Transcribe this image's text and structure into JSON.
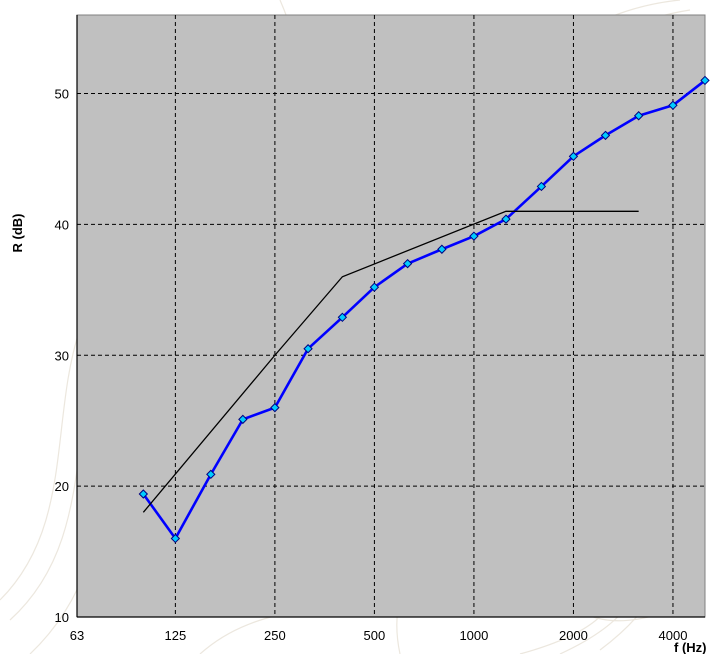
{
  "chart_data": {
    "type": "line",
    "title": "",
    "xlabel": "f (Hz)",
    "ylabel": "R (dB)",
    "x_scale": "log2",
    "xlim": [
      63,
      5000
    ],
    "ylim": [
      10,
      56
    ],
    "x_ticks": [
      63,
      125,
      250,
      500,
      1000,
      2000,
      4000
    ],
    "x_tick_labels": [
      "63",
      "125",
      "250",
      "500",
      "1000",
      "2000",
      "4000"
    ],
    "y_ticks": [
      10,
      20,
      30,
      40,
      50
    ],
    "y_tick_labels": [
      "10",
      "20",
      "30",
      "40",
      "50"
    ],
    "grid": true,
    "legend": "none",
    "colors": {
      "plot_background": "#c0c0c0",
      "grid": "#000000",
      "measured_line": "#0000ff",
      "marker_fill": "#00ccff",
      "reference_line": "#000000"
    },
    "series": [
      {
        "style": "line-with-diamond-markers",
        "x": [
          100,
          125,
          160,
          200,
          250,
          315,
          400,
          500,
          630,
          800,
          1000,
          1250,
          1600,
          2000,
          2500,
          3150,
          4000,
          5000
        ],
        "y": [
          19.4,
          16.0,
          20.9,
          25.1,
          26.0,
          30.5,
          32.9,
          35.2,
          37.0,
          38.1,
          39.1,
          40.4,
          42.9,
          45.2,
          46.8,
          48.3,
          49.1,
          51.0
        ]
      },
      {
        "style": "thin-line",
        "x": [
          100,
          250,
          400,
          1250,
          3150
        ],
        "y": [
          18,
          30,
          36,
          41,
          41
        ]
      }
    ]
  }
}
